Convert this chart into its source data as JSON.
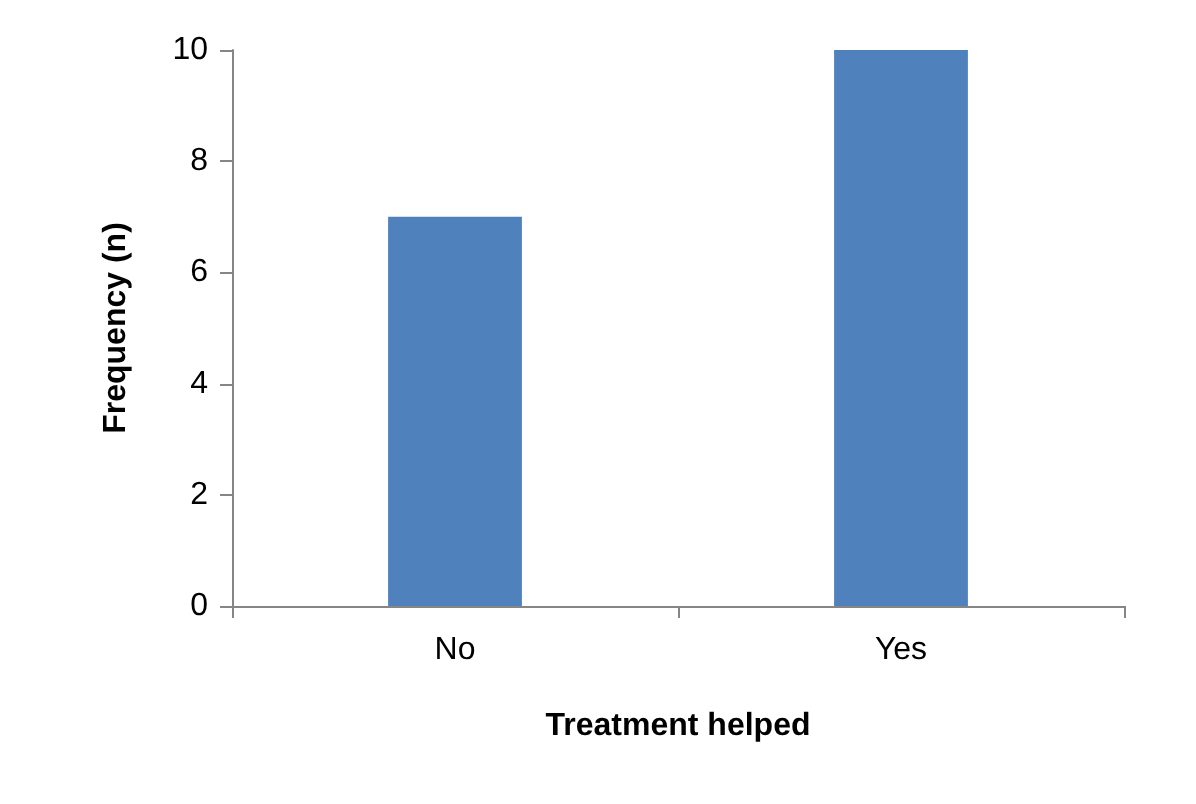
{
  "chart_data": {
    "type": "bar",
    "categories": [
      "No",
      "Yes"
    ],
    "values": [
      7,
      10
    ],
    "color": "#4f81bd",
    "xlabel": "Treatment helped",
    "ylabel": "Frequency (n)",
    "ylim": [
      0,
      10
    ],
    "yticks": [
      0,
      2,
      4,
      6,
      8,
      10
    ]
  }
}
